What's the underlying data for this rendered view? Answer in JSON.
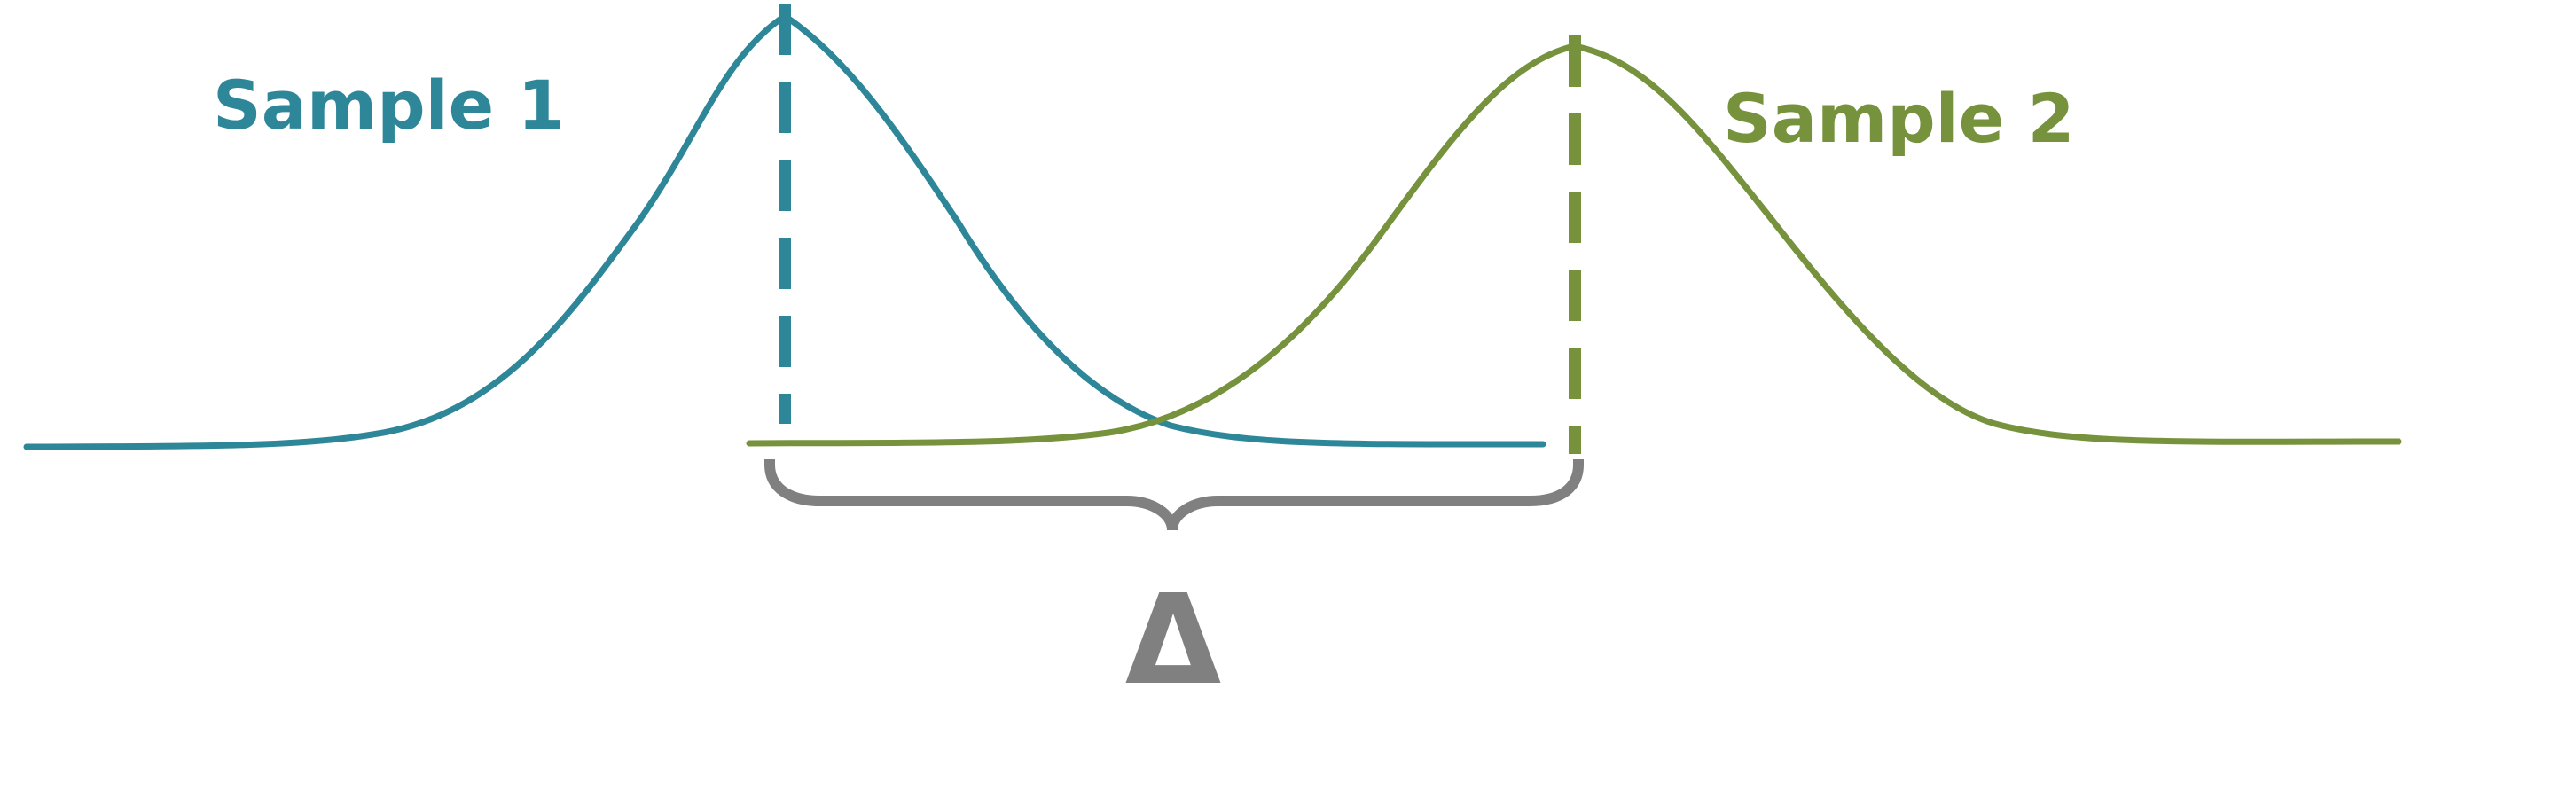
{
  "colors": {
    "sample1": "#2e8799",
    "sample2": "#76923c",
    "brace": "#808080"
  },
  "labels": {
    "sample1": "Sample 1",
    "sample2": "Sample 2",
    "delta": "Δ"
  }
}
